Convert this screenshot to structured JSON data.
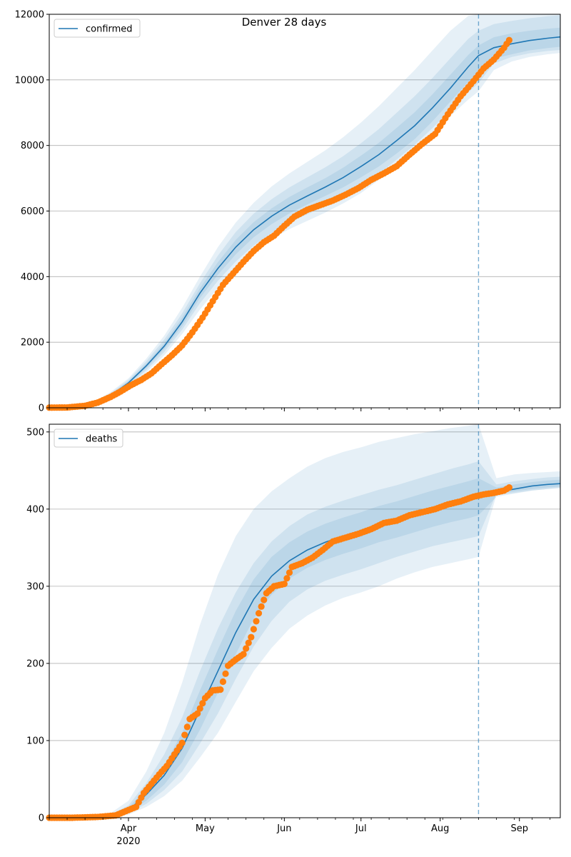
{
  "figure": {
    "title": "Denver 28 days",
    "colors": {
      "model": "#1f77b4",
      "observed": "#ff7f0e",
      "band": "#1f77b4",
      "grid": "#b0b0b0",
      "forecast_line": "#1f77b4"
    }
  },
  "chart_data": [
    {
      "type": "line",
      "id": "confirmed",
      "legend": "confirmed",
      "legend_loc": "upper left",
      "grid": "horizontal",
      "xlim": [
        "2020-03-01",
        "2020-09-17"
      ],
      "ylim": [
        0,
        12000
      ],
      "yticks": [
        0,
        2000,
        4000,
        6000,
        8000,
        10000,
        12000
      ],
      "xticks": [
        {
          "date": "2020-04-01",
          "label": "Apr"
        },
        {
          "date": "2020-05-01",
          "label": "May"
        },
        {
          "date": "2020-06-01",
          "label": "Jun"
        },
        {
          "date": "2020-07-01",
          "label": "Jul"
        },
        {
          "date": "2020-08-01",
          "label": "Aug"
        },
        {
          "date": "2020-09-01",
          "label": "Sep"
        }
      ],
      "year_label": "",
      "forecast_start": "2020-08-16",
      "model": {
        "dates": [
          "2020-03-01",
          "2020-03-10",
          "2020-03-18",
          "2020-03-25",
          "2020-04-01",
          "2020-04-08",
          "2020-04-15",
          "2020-04-22",
          "2020-04-29",
          "2020-05-06",
          "2020-05-13",
          "2020-05-20",
          "2020-05-27",
          "2020-06-03",
          "2020-06-10",
          "2020-06-17",
          "2020-06-24",
          "2020-07-01",
          "2020-07-08",
          "2020-07-15",
          "2020-07-22",
          "2020-07-29",
          "2020-08-05",
          "2020-08-12",
          "2020-08-16",
          "2020-08-22",
          "2020-08-29",
          "2020-09-05",
          "2020-09-12",
          "2020-09-17"
        ],
        "values": [
          0,
          20,
          120,
          380,
          760,
          1280,
          1880,
          2620,
          3500,
          4250,
          4900,
          5430,
          5840,
          6180,
          6460,
          6730,
          7020,
          7360,
          7720,
          8150,
          8600,
          9150,
          9750,
          10400,
          10740,
          10980,
          11100,
          11200,
          11270,
          11310
        ]
      },
      "bands": [
        {
          "level": "outer",
          "upper": [
            0,
            30,
            160,
            480,
            900,
            1500,
            2200,
            3050,
            4000,
            4900,
            5650,
            6250,
            6750,
            7150,
            7500,
            7850,
            8250,
            8700,
            9200,
            9750,
            10300,
            10900,
            11500,
            11950,
            12000,
            12000,
            12000,
            12000,
            12000,
            12000
          ],
          "lower": [
            0,
            10,
            80,
            300,
            620,
            1080,
            1600,
            2250,
            3000,
            3650,
            4250,
            4750,
            5150,
            5450,
            5700,
            5950,
            6230,
            6550,
            6950,
            7400,
            7850,
            8350,
            8900,
            9400,
            9650,
            10300,
            10560,
            10700,
            10780,
            10820
          ]
        },
        {
          "level": "middle",
          "upper": [
            0,
            25,
            145,
            440,
            850,
            1420,
            2080,
            2880,
            3800,
            4640,
            5360,
            5920,
            6360,
            6720,
            7030,
            7330,
            7670,
            8070,
            8500,
            9000,
            9500,
            10060,
            10660,
            11250,
            11500,
            11700,
            11800,
            11880,
            11940,
            11970
          ],
          "lower": [
            0,
            14,
            95,
            330,
            670,
            1150,
            1700,
            2380,
            3190,
            3870,
            4460,
            4950,
            5330,
            5650,
            5900,
            6150,
            6420,
            6750,
            7130,
            7570,
            8020,
            8530,
            9080,
            9620,
            9900,
            10500,
            10700,
            10810,
            10880,
            10910
          ]
        },
        {
          "level": "inner",
          "upper": [
            0,
            22,
            132,
            410,
            805,
            1345,
            1970,
            2750,
            3650,
            4440,
            5120,
            5660,
            6080,
            6430,
            6720,
            7000,
            7320,
            7690,
            8080,
            8540,
            9010,
            9560,
            10160,
            10760,
            11050,
            11300,
            11420,
            11500,
            11560,
            11590
          ],
          "lower": [
            0,
            17,
            108,
            350,
            715,
            1215,
            1790,
            2490,
            3350,
            4060,
            4680,
            5200,
            5600,
            5930,
            6200,
            6460,
            6720,
            7030,
            7360,
            7760,
            8190,
            8740,
            9340,
            9940,
            10250,
            10650,
            10780,
            10900,
            10970,
            11010
          ]
        }
      ],
      "observed": {
        "dates": [
          "2020-03-01",
          "2020-03-08",
          "2020-03-15",
          "2020-03-20",
          "2020-03-25",
          "2020-03-29",
          "2020-04-02",
          "2020-04-06",
          "2020-04-10",
          "2020-04-14",
          "2020-04-18",
          "2020-04-22",
          "2020-04-26",
          "2020-04-30",
          "2020-05-04",
          "2020-05-08",
          "2020-05-12",
          "2020-05-16",
          "2020-05-20",
          "2020-05-24",
          "2020-05-28",
          "2020-06-01",
          "2020-06-05",
          "2020-06-10",
          "2020-06-15",
          "2020-06-20",
          "2020-06-25",
          "2020-06-30",
          "2020-07-05",
          "2020-07-10",
          "2020-07-15",
          "2020-07-20",
          "2020-07-25",
          "2020-07-30",
          "2020-08-04",
          "2020-08-09",
          "2020-08-14",
          "2020-08-18",
          "2020-08-22",
          "2020-08-26",
          "2020-08-28"
        ],
        "values": [
          5,
          10,
          60,
          160,
          330,
          500,
          690,
          850,
          1050,
          1330,
          1600,
          1900,
          2300,
          2750,
          3250,
          3750,
          4100,
          4450,
          4780,
          5050,
          5250,
          5550,
          5830,
          6040,
          6180,
          6320,
          6500,
          6700,
          6950,
          7150,
          7370,
          7720,
          8050,
          8350,
          8950,
          9500,
          9960,
          10350,
          10620,
          10980,
          11210
        ]
      }
    },
    {
      "type": "line",
      "id": "deaths",
      "legend": "deaths",
      "legend_loc": "upper left",
      "grid": "horizontal",
      "xlim": [
        "2020-03-01",
        "2020-09-17"
      ],
      "ylim": [
        0,
        510
      ],
      "yticks": [
        0,
        100,
        200,
        300,
        400,
        500
      ],
      "xticks": [
        {
          "date": "2020-04-01",
          "label": "Apr"
        },
        {
          "date": "2020-05-01",
          "label": "May"
        },
        {
          "date": "2020-06-01",
          "label": "Jun"
        },
        {
          "date": "2020-07-01",
          "label": "Jul"
        },
        {
          "date": "2020-08-01",
          "label": "Aug"
        },
        {
          "date": "2020-09-01",
          "label": "Sep"
        }
      ],
      "year_label": "2020",
      "forecast_start": "2020-08-16",
      "model": {
        "dates": [
          "2020-03-01",
          "2020-03-15",
          "2020-03-25",
          "2020-04-01",
          "2020-04-08",
          "2020-04-15",
          "2020-04-22",
          "2020-04-29",
          "2020-05-06",
          "2020-05-13",
          "2020-05-20",
          "2020-05-27",
          "2020-06-03",
          "2020-06-10",
          "2020-06-17",
          "2020-06-24",
          "2020-07-01",
          "2020-07-08",
          "2020-07-15",
          "2020-07-22",
          "2020-07-29",
          "2020-08-05",
          "2020-08-12",
          "2020-08-16",
          "2020-08-23",
          "2020-08-30",
          "2020-09-06",
          "2020-09-12",
          "2020-09-17"
        ],
        "values": [
          0,
          0,
          2,
          10,
          30,
          55,
          90,
          140,
          190,
          240,
          283,
          313,
          333,
          347,
          357,
          365,
          372,
          380,
          386,
          393,
          400,
          406,
          412,
          415,
          422,
          426,
          430,
          432,
          433
        ]
      },
      "bands": [
        {
          "level": "outer",
          "upper": [
            0,
            1,
            6,
            22,
            60,
            110,
            175,
            250,
            315,
            365,
            400,
            423,
            440,
            455,
            466,
            474,
            480,
            487,
            492,
            497,
            501,
            505,
            508,
            510,
            440,
            445,
            447,
            448,
            449
          ],
          "lower": [
            0,
            0,
            1,
            4,
            14,
            28,
            48,
            78,
            110,
            150,
            190,
            220,
            245,
            262,
            275,
            285,
            292,
            300,
            310,
            318,
            325,
            330,
            335,
            338,
            418,
            421,
            424,
            426,
            427
          ]
        },
        {
          "level": "middle",
          "upper": [
            0,
            1,
            4,
            16,
            45,
            82,
            130,
            190,
            245,
            292,
            330,
            358,
            378,
            393,
            403,
            411,
            418,
            425,
            431,
            438,
            445,
            452,
            458,
            462,
            432,
            436,
            439,
            441,
            442
          ],
          "lower": [
            0,
            0,
            1,
            6,
            18,
            36,
            60,
            96,
            135,
            180,
            222,
            255,
            280,
            296,
            307,
            315,
            322,
            330,
            338,
            345,
            352,
            357,
            362,
            365,
            420,
            423,
            426,
            428,
            429
          ]
        },
        {
          "level": "inner",
          "upper": [
            0,
            0,
            3,
            13,
            38,
            68,
            110,
            165,
            218,
            268,
            309,
            338,
            357,
            371,
            381,
            389,
            396,
            404,
            410,
            417,
            424,
            430,
            436,
            440,
            428,
            432,
            435,
            437,
            438
          ],
          "lower": [
            0,
            0,
            1,
            7,
            22,
            43,
            72,
            114,
            162,
            212,
            258,
            289,
            310,
            324,
            334,
            342,
            349,
            357,
            363,
            370,
            377,
            383,
            388,
            392,
            416,
            420,
            424,
            426,
            428
          ]
        }
      ],
      "observed": {
        "dates": [
          "2020-03-01",
          "2020-03-10",
          "2020-03-20",
          "2020-03-27",
          "2020-04-01",
          "2020-04-04",
          "2020-04-07",
          "2020-04-10",
          "2020-04-13",
          "2020-04-16",
          "2020-04-19",
          "2020-04-22",
          "2020-04-25",
          "2020-04-28",
          "2020-05-01",
          "2020-05-04",
          "2020-05-07",
          "2020-05-10",
          "2020-05-13",
          "2020-05-16",
          "2020-05-19",
          "2020-05-22",
          "2020-05-25",
          "2020-05-28",
          "2020-06-01",
          "2020-06-04",
          "2020-06-08",
          "2020-06-12",
          "2020-06-16",
          "2020-06-20",
          "2020-06-25",
          "2020-06-30",
          "2020-07-05",
          "2020-07-10",
          "2020-07-15",
          "2020-07-20",
          "2020-07-25",
          "2020-07-30",
          "2020-08-04",
          "2020-08-09",
          "2020-08-14",
          "2020-08-18",
          "2020-08-22",
          "2020-08-26",
          "2020-08-28"
        ],
        "values": [
          0,
          0,
          1,
          3,
          10,
          14,
          32,
          44,
          56,
          67,
          82,
          97,
          128,
          135,
          155,
          165,
          166,
          197,
          205,
          212,
          234,
          265,
          291,
          300,
          303,
          325,
          330,
          337,
          347,
          358,
          363,
          368,
          374,
          382,
          385,
          392,
          396,
          400,
          406,
          410,
          416,
          419,
          421,
          424,
          428
        ]
      }
    }
  ]
}
